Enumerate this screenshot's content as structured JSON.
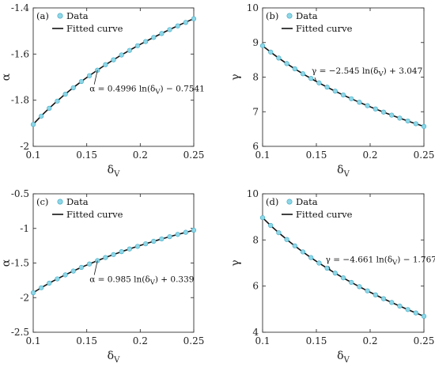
{
  "colors": {
    "marker_fill": "#8fd6e6",
    "marker_stroke": "#3aa9c4",
    "curve": "#111111",
    "axes": "#333333"
  },
  "chart_data": [
    {
      "type": "scatter",
      "panel_label": "(a)",
      "xlabel": "δV",
      "ylabel": "α",
      "xlim": [
        0.1,
        0.25
      ],
      "ylim": [
        -2.0,
        -1.4
      ],
      "xticks": [
        0.1,
        0.15,
        0.2,
        0.25
      ],
      "xtick_labels": [
        "0.1",
        "0.15",
        "0.2",
        "0.25"
      ],
      "yticks": [
        -2.0,
        -1.8,
        -1.6,
        -1.4
      ],
      "ytick_labels": [
        "-2",
        "-1.8",
        "-1.6",
        "-1.4"
      ],
      "legend": {
        "position": "top-left",
        "entries": [
          "Data",
          "Fitted curve"
        ]
      },
      "fit": {
        "a": 0.4996,
        "b": -0.7541,
        "equation": "α = 0.4996 ln(δV) − 0.7541",
        "anchor_x": 0.16
      },
      "x": [
        0.1,
        0.1075,
        0.115,
        0.1225,
        0.13,
        0.1375,
        0.145,
        0.1525,
        0.16,
        0.1675,
        0.175,
        0.1825,
        0.19,
        0.1975,
        0.205,
        0.2125,
        0.22,
        0.2275,
        0.235,
        0.2425,
        0.25
      ],
      "y": [
        -1.905,
        -1.869,
        -1.835,
        -1.804,
        -1.774,
        -1.746,
        -1.719,
        -1.694,
        -1.67,
        -1.646,
        -1.625,
        -1.604,
        -1.584,
        -1.564,
        -1.546,
        -1.528,
        -1.511,
        -1.494,
        -1.478,
        -1.463,
        -1.447
      ]
    },
    {
      "type": "scatter",
      "panel_label": "(b)",
      "xlabel": "δV",
      "ylabel": "γ",
      "xlim": [
        0.1,
        0.25
      ],
      "ylim": [
        6,
        10
      ],
      "xticks": [
        0.1,
        0.15,
        0.2,
        0.25
      ],
      "xtick_labels": [
        "0.1",
        "0.15",
        "0.2",
        "0.25"
      ],
      "yticks": [
        6,
        7,
        8,
        9,
        10
      ],
      "ytick_labels": [
        "6",
        "7",
        "8",
        "9",
        "10"
      ],
      "legend": {
        "position": "top-left",
        "entries": [
          "Data",
          "Fitted curve"
        ]
      },
      "fit": {
        "a": -2.545,
        "b": 3.047,
        "equation": "γ = −2.545 ln(δV) + 3.047",
        "anchor_x": 0.15
      },
      "x": [
        0.1,
        0.1075,
        0.115,
        0.1225,
        0.13,
        0.1375,
        0.145,
        0.1525,
        0.16,
        0.1675,
        0.175,
        0.1825,
        0.19,
        0.1975,
        0.205,
        0.2125,
        0.22,
        0.2275,
        0.235,
        0.2425,
        0.25
      ],
      "y": [
        8.907,
        8.723,
        8.551,
        8.391,
        8.24,
        8.097,
        7.962,
        7.834,
        7.711,
        7.595,
        7.483,
        7.376,
        7.274,
        7.175,
        7.08,
        6.989,
        6.901,
        6.815,
        6.733,
        6.653,
        6.575
      ]
    },
    {
      "type": "scatter",
      "panel_label": "(c)",
      "xlabel": "δV",
      "ylabel": "α",
      "xlim": [
        0.1,
        0.25
      ],
      "ylim": [
        -2.5,
        -0.5
      ],
      "xticks": [
        0.1,
        0.15,
        0.2,
        0.25
      ],
      "xtick_labels": [
        "0.1",
        "0.15",
        "0.2",
        "0.25"
      ],
      "yticks": [
        -2.5,
        -2.0,
        -1.5,
        -1.0,
        -0.5
      ],
      "ytick_labels": [
        "-2.5",
        "-2",
        "-1.5",
        "-1",
        "-0.5"
      ],
      "legend": {
        "position": "top-left",
        "entries": [
          "Data",
          "Fitted curve"
        ]
      },
      "fit": {
        "a": 0.985,
        "b": 0.339,
        "equation": "α = 0.985 ln(δV) + 0.339",
        "anchor_x": 0.16
      },
      "x": [
        0.1,
        0.1075,
        0.115,
        0.1225,
        0.13,
        0.1375,
        0.145,
        0.1525,
        0.16,
        0.1675,
        0.175,
        0.1825,
        0.19,
        0.1975,
        0.205,
        0.2125,
        0.22,
        0.2275,
        0.235,
        0.2425,
        0.25
      ],
      "y": [
        -1.929,
        -1.858,
        -1.791,
        -1.729,
        -1.671,
        -1.616,
        -1.563,
        -1.514,
        -1.466,
        -1.421,
        -1.378,
        -1.336,
        -1.297,
        -1.259,
        -1.222,
        -1.186,
        -1.152,
        -1.119,
        -1.087,
        -1.056,
        -1.026
      ]
    },
    {
      "type": "scatter",
      "panel_label": "(d)",
      "xlabel": "δV",
      "ylabel": "γ",
      "xlim": [
        0.1,
        0.25
      ],
      "ylim": [
        4,
        10
      ],
      "xticks": [
        0.1,
        0.15,
        0.2,
        0.25
      ],
      "xtick_labels": [
        "0.1",
        "0.15",
        "0.2",
        "0.25"
      ],
      "yticks": [
        4,
        6,
        8,
        10
      ],
      "ytick_labels": [
        "4",
        "6",
        "8",
        "10"
      ],
      "legend": {
        "position": "top-left",
        "entries": [
          "Data",
          "Fitted curve"
        ]
      },
      "fit": {
        "a": -4.661,
        "b": -1.767,
        "equation": "γ = −4.661 ln(δV) − 1.767",
        "anchor_x": 0.163
      },
      "x": [
        0.1,
        0.1075,
        0.115,
        0.1225,
        0.13,
        0.1375,
        0.145,
        0.1525,
        0.16,
        0.1675,
        0.175,
        0.1825,
        0.19,
        0.1975,
        0.205,
        0.2125,
        0.22,
        0.2275,
        0.235,
        0.2425,
        0.25
      ],
      "y": [
        8.965,
        8.628,
        8.314,
        8.02,
        7.743,
        7.482,
        7.235,
        7.0,
        6.776,
        6.562,
        6.358,
        6.162,
        5.975,
        5.794,
        5.62,
        5.453,
        5.291,
        5.135,
        4.984,
        4.837,
        4.694
      ]
    }
  ]
}
